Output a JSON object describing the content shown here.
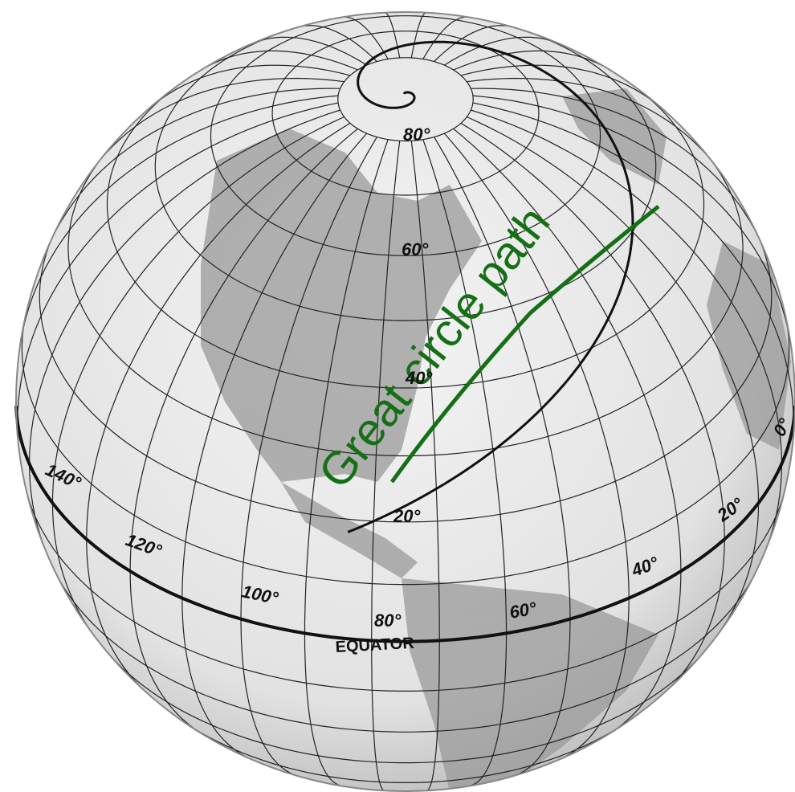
{
  "title": "Great circle path",
  "latitude_labels": [
    "80°",
    "60°",
    "40°",
    "20°"
  ],
  "longitude_labels": [
    "140°",
    "120°",
    "100°",
    "80°",
    "60°",
    "40°",
    "20°",
    "0°"
  ],
  "equator_label": "EQUATOR"
}
